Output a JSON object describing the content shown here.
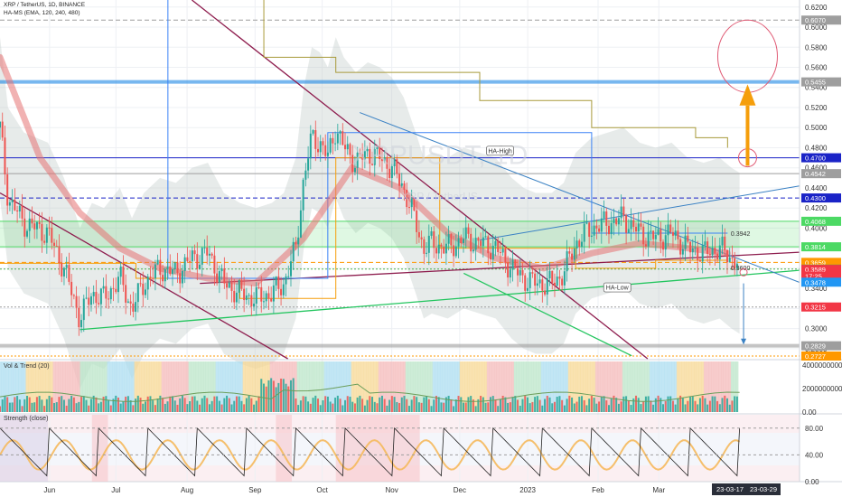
{
  "chart_data": {
    "type": "candlestick",
    "header": {
      "symbol_line": "XRP / TetherUS, 1D, BINANCE",
      "indicator_line": "HA-MS (EMA, 120, 240, 480)",
      "watermark": "XRPUSDT, 1D",
      "watermark_sub": "XRP / TetherUS"
    },
    "price_axis": {
      "ticks": [
        "0.6200",
        "0.6000",
        "0.5800",
        "0.5600",
        "0.5400",
        "0.5200",
        "0.5000",
        "0.4800",
        "0.4600",
        "0.4400",
        "0.4200",
        "0.4000",
        "0.3800",
        "0.3600",
        "0.3400",
        "0.3200",
        "0.3000",
        "0.2800"
      ],
      "tick_values": [
        0.62,
        0.6,
        0.58,
        0.56,
        0.54,
        0.52,
        0.5,
        0.48,
        0.46,
        0.44,
        0.42,
        0.4,
        0.38,
        0.36,
        0.34,
        0.32,
        0.3,
        0.28
      ],
      "ylim": [
        0.27,
        0.627
      ]
    },
    "price_badges": [
      {
        "label": "0.6070",
        "value": 0.607,
        "bg": "#9e9e9e",
        "fg": "#ffffff"
      },
      {
        "label": "0.5455",
        "value": 0.5455,
        "bg": "#9e9e9e",
        "fg": "#ffffff"
      },
      {
        "label": "0.4700",
        "value": 0.47,
        "bg": "#1a23c7",
        "fg": "#ffffff"
      },
      {
        "label": "0.4542",
        "value": 0.4542,
        "bg": "#9e9e9e",
        "fg": "#ffffff"
      },
      {
        "label": "0.4300",
        "value": 0.43,
        "bg": "#1a23c7",
        "fg": "#ffffff"
      },
      {
        "label": "0.4068",
        "value": 0.4068,
        "bg": "#4cd964",
        "fg": "#ffffff"
      },
      {
        "label": "0.3814",
        "value": 0.3814,
        "bg": "#4cd964",
        "fg": "#ffffff"
      },
      {
        "label": "0.3659",
        "value": 0.3659,
        "bg": "#ff9800",
        "fg": "#ffffff"
      },
      {
        "label": "0.3592",
        "value": 0.3592,
        "bg": "#4caf50",
        "fg": "#ffffff"
      },
      {
        "label": "0.3589",
        "value": 0.3589,
        "bg": "#f23645",
        "fg": "#ffffff"
      },
      {
        "label": "17:25",
        "value": 0.3522,
        "bg": "#f23645",
        "fg": "#ffffff"
      },
      {
        "label": "0.3478",
        "value": 0.3462,
        "bg": "#2196f3",
        "fg": "#ffffff"
      },
      {
        "label": "0.3215",
        "value": 0.3215,
        "bg": "#f23645",
        "fg": "#ffffff"
      },
      {
        "label": "0.2829",
        "value": 0.2829,
        "bg": "#9e9e9e",
        "fg": "#ffffff"
      },
      {
        "label": "0.2727",
        "value": 0.2727,
        "bg": "#ff9800",
        "fg": "#ffffff"
      }
    ],
    "levels": [
      {
        "name": "0.6070",
        "value": 0.607,
        "color": "#9e9e9e",
        "style": "dashed"
      },
      {
        "name": "0.5455",
        "value": 0.5455,
        "color": "#1e88e5",
        "style": "thick"
      },
      {
        "name": "0.4700",
        "value": 0.47,
        "color": "#1a23c7",
        "style": "solid"
      },
      {
        "name": "0.4542",
        "value": 0.4542,
        "color": "#9e9e9e",
        "style": "solid"
      },
      {
        "name": "0.4300",
        "value": 0.43,
        "color": "#1a23c7",
        "style": "dashed"
      },
      {
        "name": "0.4068",
        "value": 0.4068,
        "color": "#4cd964",
        "style": "solid"
      },
      {
        "name": "0.3814",
        "value": 0.3814,
        "color": "#4cd964",
        "style": "solid"
      },
      {
        "name": "0.3659",
        "value": 0.3659,
        "color": "#ff9800",
        "style": "dashed"
      },
      {
        "name": "0.3592",
        "value": 0.3592,
        "color": "#4caf50",
        "style": "dotted"
      },
      {
        "name": "0.3215",
        "value": 0.3215,
        "color": "#9e9e9e",
        "style": "dotted"
      },
      {
        "name": "0.2829",
        "value": 0.2829,
        "color": "#9e9e9e",
        "style": "thick"
      },
      {
        "name": "0.2727",
        "value": 0.2727,
        "color": "#ff9800",
        "style": "dotted"
      }
    ],
    "zone": {
      "top": 0.4068,
      "bottom": 0.3814,
      "color": "#4cd964"
    },
    "level_labels": [
      {
        "text": "0.3942",
        "x": 0.905,
        "value": 0.3942
      },
      {
        "text": "0.3600",
        "x": 0.905,
        "value": 0.36
      }
    ],
    "callouts": [
      {
        "text": "HA-High",
        "x": 0.6255,
        "value": 0.477
      },
      {
        "text": "HA-Low",
        "x": 0.772,
        "value": 0.341
      }
    ],
    "x_axis": {
      "labels": [
        "Jun",
        "Jul",
        "Aug",
        "Sep",
        "Oct",
        "Nov",
        "Dec",
        "2023",
        "Feb",
        "Mar"
      ],
      "positions": [
        0.062,
        0.145,
        0.234,
        0.319,
        0.403,
        0.49,
        0.575,
        0.66,
        0.748,
        0.824
      ],
      "date_badges": [
        "23-03-17",
        "23-03-29"
      ]
    },
    "close_path": [
      [
        0.0,
        0.5
      ],
      [
        0.01,
        0.43
      ],
      [
        0.03,
        0.405
      ],
      [
        0.06,
        0.395
      ],
      [
        0.08,
        0.36
      ],
      [
        0.1,
        0.31
      ],
      [
        0.115,
        0.335
      ],
      [
        0.13,
        0.33
      ],
      [
        0.15,
        0.35
      ],
      [
        0.165,
        0.32
      ],
      [
        0.18,
        0.345
      ],
      [
        0.2,
        0.36
      ],
      [
        0.22,
        0.355
      ],
      [
        0.24,
        0.37
      ],
      [
        0.26,
        0.375
      ],
      [
        0.28,
        0.345
      ],
      [
        0.3,
        0.335
      ],
      [
        0.32,
        0.33
      ],
      [
        0.34,
        0.335
      ],
      [
        0.355,
        0.345
      ],
      [
        0.37,
        0.38
      ],
      [
        0.38,
        0.45
      ],
      [
        0.39,
        0.49
      ],
      [
        0.4,
        0.485
      ],
      [
        0.41,
        0.47
      ],
      [
        0.42,
        0.5
      ],
      [
        0.43,
        0.48
      ],
      [
        0.445,
        0.465
      ],
      [
        0.46,
        0.475
      ],
      [
        0.475,
        0.47
      ],
      [
        0.49,
        0.46
      ],
      [
        0.505,
        0.44
      ],
      [
        0.52,
        0.405
      ],
      [
        0.53,
        0.38
      ],
      [
        0.54,
        0.385
      ],
      [
        0.56,
        0.38
      ],
      [
        0.58,
        0.39
      ],
      [
        0.6,
        0.385
      ],
      [
        0.62,
        0.38
      ],
      [
        0.64,
        0.36
      ],
      [
        0.655,
        0.35
      ],
      [
        0.67,
        0.345
      ],
      [
        0.69,
        0.345
      ],
      [
        0.705,
        0.355
      ],
      [
        0.72,
        0.385
      ],
      [
        0.74,
        0.4
      ],
      [
        0.76,
        0.405
      ],
      [
        0.78,
        0.41
      ],
      [
        0.8,
        0.395
      ],
      [
        0.82,
        0.39
      ],
      [
        0.84,
        0.395
      ],
      [
        0.86,
        0.38
      ],
      [
        0.88,
        0.375
      ],
      [
        0.9,
        0.38
      ],
      [
        0.915,
        0.37
      ],
      [
        0.925,
        0.365
      ]
    ],
    "volume_pane": {
      "label": "Vol & Trend (20)",
      "ticks": [
        "4000000000.00",
        "2000000000.00",
        "0.00"
      ],
      "tick_values": [
        4000000000,
        2000000000,
        0
      ]
    },
    "strength_pane": {
      "label": "Strength (close)",
      "ticks": [
        "80.00",
        "40.00",
        "0.00"
      ],
      "tick_values": [
        80,
        40,
        0
      ]
    }
  }
}
